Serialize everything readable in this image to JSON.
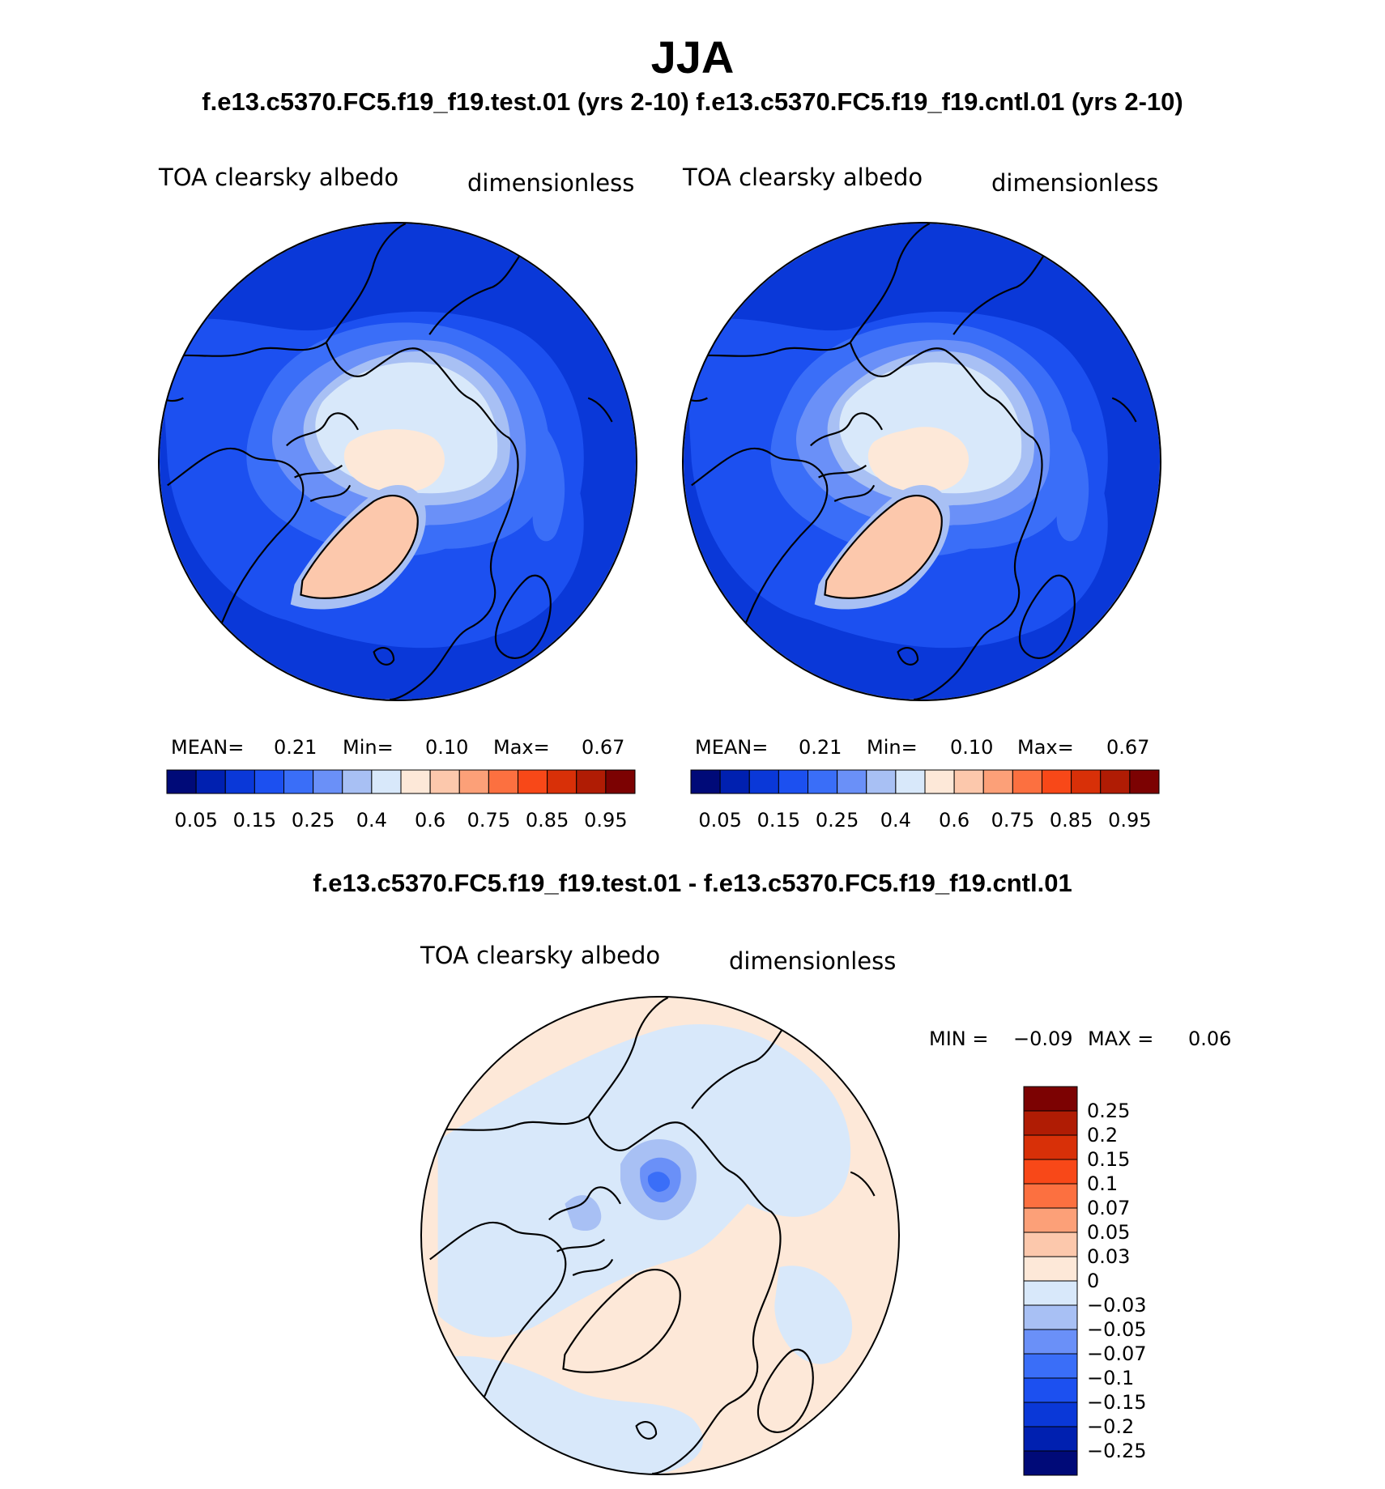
{
  "header": {
    "title": "JJA",
    "subtitle": "f.e13.c5370.FC5.f19_f19.test.01 (yrs 2-10) f.e13.c5370.FC5.f19_f19.cntl.01 (yrs 2-10)"
  },
  "panels": [
    {
      "variable": "TOA clearsky albedo",
      "units": "dimensionless",
      "stats": {
        "mean_label": "MEAN=",
        "mean": "0.21",
        "min_label": "Min=",
        "min": "0.10",
        "max_label": "Max=",
        "max": "0.67"
      }
    },
    {
      "variable": "TOA clearsky albedo",
      "units": "dimensionless",
      "stats": {
        "mean_label": "MEAN=",
        "mean": "0.21",
        "min_label": "Min=",
        "min": "0.10",
        "max_label": "Max=",
        "max": "0.67"
      }
    }
  ],
  "colorbar_abs": {
    "tick_labels": [
      "0.05",
      "0.15",
      "0.25",
      "0.4",
      "0.6",
      "0.75",
      "0.85",
      "0.95"
    ],
    "colors": [
      "#000a78",
      "#0020b0",
      "#0a38d8",
      "#1c50f0",
      "#3a6ef8",
      "#6a90f8",
      "#a8c0f4",
      "#d8e8fa",
      "#fde8d8",
      "#fcc8ac",
      "#fca078",
      "#fc7040",
      "#f84818",
      "#d83008",
      "#b01c04",
      "#7c0202"
    ]
  },
  "difference": {
    "title": "f.e13.c5370.FC5.f19_f19.test.01 - f.e13.c5370.FC5.f19_f19.cntl.01",
    "variable": "TOA clearsky albedo",
    "units": "dimensionless",
    "stats": {
      "min_label": "MIN =",
      "min": "−0.09",
      "max_label": "MAX =",
      "max": "0.06"
    },
    "colorbar": {
      "tick_labels": [
        "0.25",
        "0.2",
        "0.15",
        "0.1",
        "0.07",
        "0.05",
        "0.03",
        "0",
        "−0.03",
        "−0.05",
        "−0.07",
        "−0.1",
        "−0.15",
        "−0.2",
        "−0.25"
      ],
      "colors": [
        "#7c0202",
        "#b01c04",
        "#d83008",
        "#f84818",
        "#fc7040",
        "#fca078",
        "#fcc8ac",
        "#fde8d8",
        "#d8e8fa",
        "#a8c0f4",
        "#6a90f8",
        "#3a6ef8",
        "#1c50f0",
        "#0a38d8",
        "#0020b0",
        "#000a78"
      ]
    }
  }
}
